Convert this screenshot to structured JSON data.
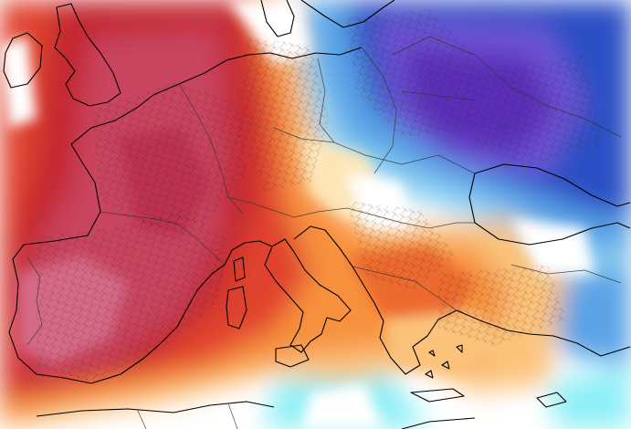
{
  "map": {
    "type": "temperature-anomaly",
    "region": "Europe",
    "palette": {
      "deep_purple": "#5a2fb8",
      "purple": "#6f55d6",
      "dark_blue": "#2a4fc4",
      "blue": "#3e7ad8",
      "light_blue": "#5aa3e6",
      "sky": "#8fd3f2",
      "cyan": "#8ff0f7",
      "pale_cyan": "#c8f7fb",
      "white": "#ffffff",
      "cream": "#fde6b8",
      "light_orange": "#fbc37a",
      "orange": "#f7913e",
      "dark_orange": "#ec6a2e",
      "red": "#e0422d",
      "crimson": "#c3262f",
      "rose": "#c9455f",
      "magenta_red": "#bd3050",
      "pink": "#d56a86"
    },
    "outline_color": "#000000",
    "border_color": "#333333"
  }
}
